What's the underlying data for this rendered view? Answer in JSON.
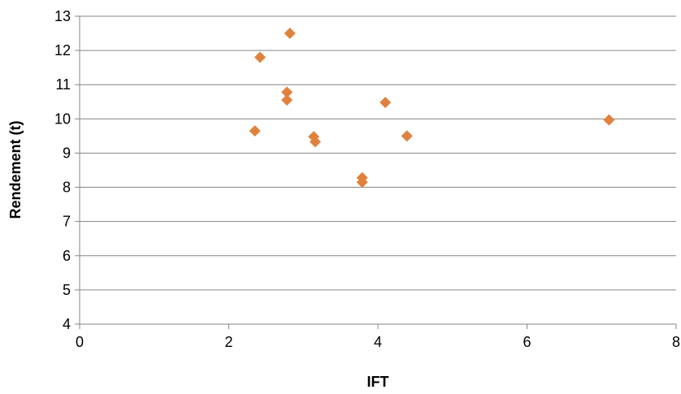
{
  "chart_data": {
    "type": "scatter",
    "title": "",
    "xlabel": "IFT",
    "ylabel": "Rendement (t)",
    "xlim": [
      0,
      8
    ],
    "ylim": [
      4,
      13
    ],
    "x_ticks": [
      0,
      2,
      4,
      6,
      8
    ],
    "y_ticks": [
      4,
      5,
      6,
      7,
      8,
      9,
      10,
      11,
      12,
      13
    ],
    "grid": "horizontal",
    "legend": "none",
    "marker": "diamond",
    "colors": {
      "marker": "#E0823D",
      "grid": "#868686",
      "axis": "#868686"
    },
    "series": [
      {
        "points": [
          {
            "x": 2.35,
            "y": 9.65
          },
          {
            "x": 2.42,
            "y": 11.8
          },
          {
            "x": 2.78,
            "y": 10.78
          },
          {
            "x": 2.78,
            "y": 10.55
          },
          {
            "x": 2.82,
            "y": 12.5
          },
          {
            "x": 3.14,
            "y": 9.48
          },
          {
            "x": 3.16,
            "y": 9.33
          },
          {
            "x": 3.79,
            "y": 8.28
          },
          {
            "x": 3.79,
            "y": 8.15
          },
          {
            "x": 4.1,
            "y": 10.48
          },
          {
            "x": 4.39,
            "y": 9.5
          },
          {
            "x": 7.1,
            "y": 9.97
          }
        ]
      }
    ]
  }
}
